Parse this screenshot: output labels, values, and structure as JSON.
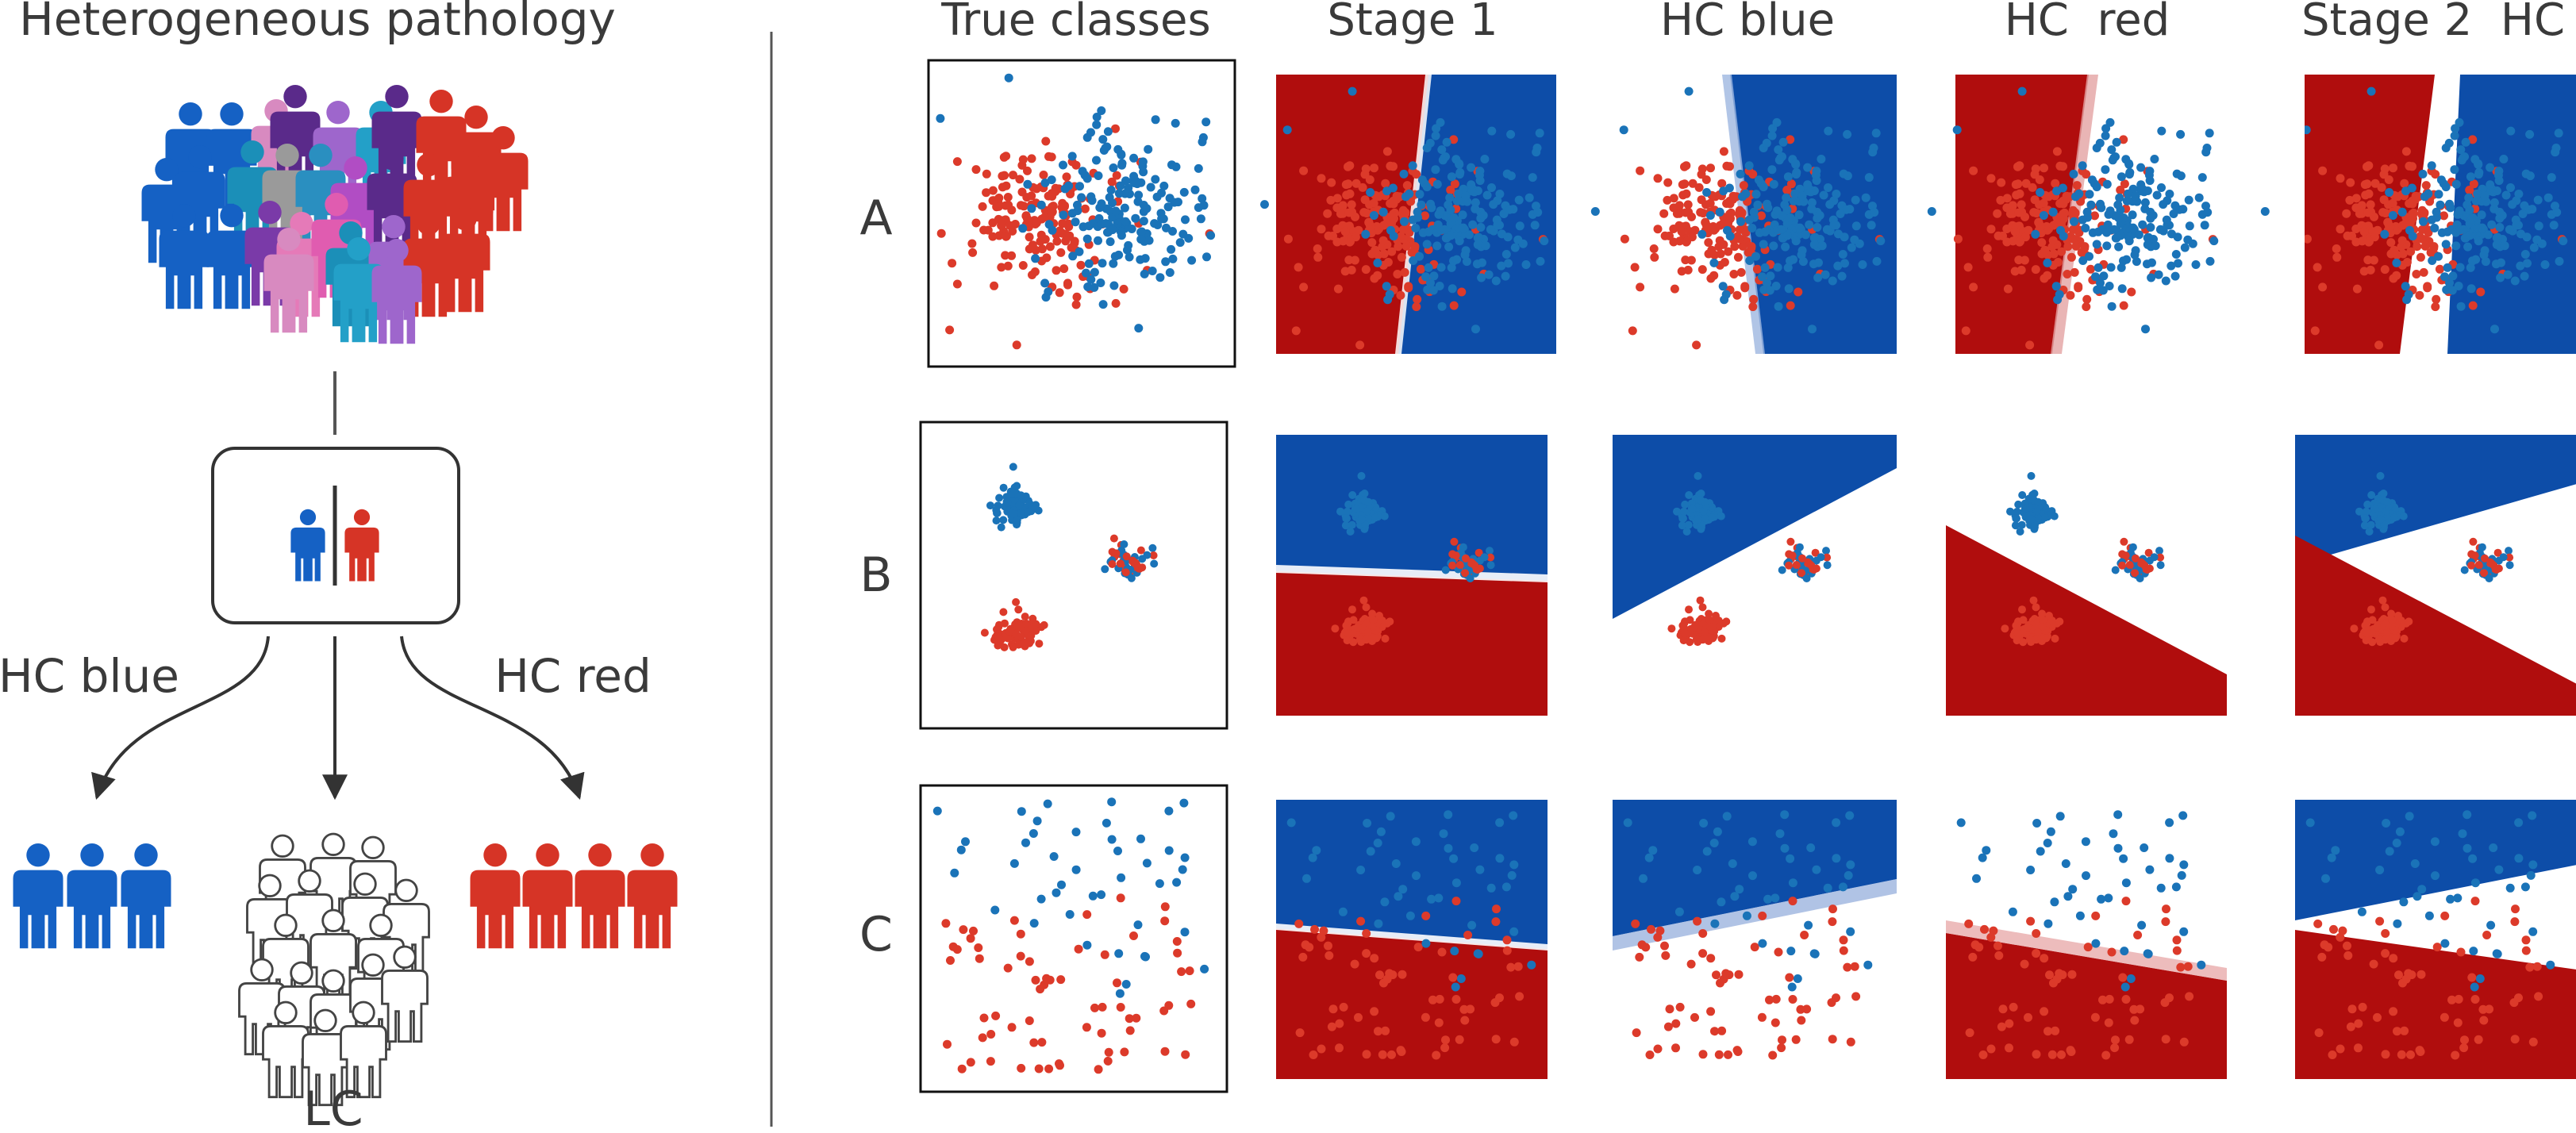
{
  "left_panel": {
    "title": "Heterogeneous pathology",
    "branch_left_label": "HC blue",
    "branch_right_label": "HC red",
    "bottom_label": "LC"
  },
  "right_panel": {
    "column_headers": [
      "True classes",
      "Stage 1",
      "HC blue",
      "HC  red",
      "Stage 2  HC"
    ],
    "row_labels": [
      "A",
      "B",
      "C"
    ]
  },
  "colors": {
    "blue": "#1561c4",
    "red": "#d63426",
    "region_blue": "#0d4da8",
    "region_red": "#b00d0d",
    "point_blue": "#1a73b8",
    "point_red": "#dc3a2a",
    "text": "#3a3a3a"
  },
  "icons": [
    "person-icon",
    "divider-icon",
    "arrow-icon"
  ]
}
